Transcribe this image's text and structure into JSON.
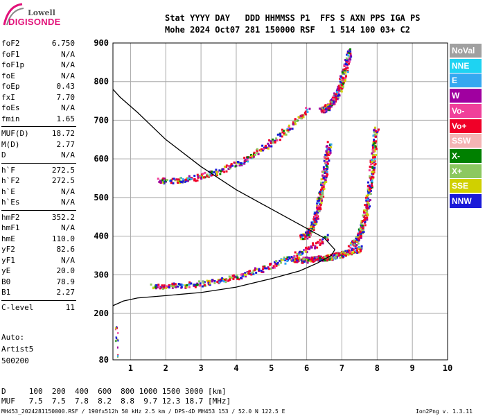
{
  "logo": {
    "top": "Lowell",
    "bottom": "DIGISONDE"
  },
  "header": {
    "line1": "Stat YYYY DAY   DDD HHMMSS P1  FFS S AXN PPS IGA PS",
    "line2": "Mohe 2024 Oct07 281 150000 RSF   1 514 100 03+ C2"
  },
  "params": [
    {
      "k": "foF2",
      "v": "6.750"
    },
    {
      "k": "foF1",
      "v": "N/A"
    },
    {
      "k": "foF1p",
      "v": "N/A"
    },
    {
      "k": "foE",
      "v": "N/A"
    },
    {
      "k": "foEp",
      "v": "0.43"
    },
    {
      "k": "fxI",
      "v": "7.70"
    },
    {
      "k": "foEs",
      "v": "N/A"
    },
    {
      "k": "fmin",
      "v": "1.65"
    },
    {
      "k": "MUF(D)",
      "v": "18.72"
    },
    {
      "k": "M(D)",
      "v": "2.77"
    },
    {
      "k": "D",
      "v": "N/A"
    },
    {
      "k": "h`F",
      "v": "272.5"
    },
    {
      "k": "h`F2",
      "v": "272.5"
    },
    {
      "k": "h`E",
      "v": "N/A"
    },
    {
      "k": "h`Es",
      "v": "N/A"
    },
    {
      "k": "hmF2",
      "v": "352.2"
    },
    {
      "k": "hmF1",
      "v": "N/A"
    },
    {
      "k": "hmE",
      "v": "110.0"
    },
    {
      "k": "yF2",
      "v": "82.6"
    },
    {
      "k": "yF1",
      "v": "N/A"
    },
    {
      "k": "yE",
      "v": "20.0"
    },
    {
      "k": "B0",
      "v": "78.9"
    },
    {
      "k": "B1",
      "v": "2.27"
    },
    {
      "k": "C-level",
      "v": "11"
    }
  ],
  "auto": {
    "line1": "Auto:",
    "line2": "Artist5",
    "line3": "500200"
  },
  "legend": [
    {
      "label": "NoVal",
      "color": "#a0a0a0"
    },
    {
      "label": "NNE",
      "color": "#1ed3f2"
    },
    {
      "label": "E",
      "color": "#35a8f0"
    },
    {
      "label": "W",
      "color": "#a000a0"
    },
    {
      "label": "Vo-",
      "color": "#f0409a"
    },
    {
      "label": "Vo+",
      "color": "#f00028"
    },
    {
      "label": "SSW",
      "color": "#f4b4b4"
    },
    {
      "label": "X-",
      "color": "#008000"
    },
    {
      "label": "X+",
      "color": "#8cc860"
    },
    {
      "label": "SSE",
      "color": "#d0d000"
    },
    {
      "label": "NNW",
      "color": "#1a1ad8"
    }
  ],
  "footer": {
    "d_row": "D     100  200  400  600  800 1000 1500 3000 [km]",
    "muf_row": "MUF   7.5  7.5  7.8  8.2  8.8  9.7 12.3 18.7 [MHz]",
    "file_row": "MH453_2024281150000.RSF / 190fx512h 50 kHz 2.5 km / DPS-4D MH453 153 / 52.0 N 122.5 E",
    "version": "Ion2Png v. 1.3.11"
  },
  "chart_data": {
    "type": "scatter",
    "xlim": [
      0.5,
      10
    ],
    "ylim": [
      80,
      900
    ],
    "x_ticks": [
      1,
      2,
      3,
      4,
      5,
      6,
      7,
      8,
      9,
      10
    ],
    "y_ticks": [
      80,
      200,
      300,
      400,
      500,
      600,
      700,
      800,
      900
    ],
    "grid": true,
    "profile": [
      [
        0.5,
        220
      ],
      [
        0.8,
        232
      ],
      [
        1.2,
        240
      ],
      [
        2,
        246
      ],
      [
        3,
        254
      ],
      [
        4,
        268
      ],
      [
        5,
        290
      ],
      [
        5.8,
        310
      ],
      [
        6.3,
        330
      ],
      [
        6.7,
        350
      ],
      [
        6.8,
        365
      ],
      [
        6.5,
        395
      ],
      [
        5.8,
        430
      ],
      [
        5,
        470
      ],
      [
        4,
        520
      ],
      [
        3,
        580
      ],
      [
        2,
        650
      ],
      [
        1.2,
        720
      ],
      [
        0.7,
        760
      ],
      [
        0.5,
        780
      ]
    ],
    "traces": [
      {
        "name": "o_F2_low",
        "x0": 1.6,
        "x1": 6.6,
        "y0": 272,
        "y1": 400
      },
      {
        "name": "x_F2_low",
        "x0": 5.6,
        "x1": 7.5,
        "y0": 340,
        "y1": 370
      },
      {
        "name": "o_F2_steep",
        "x0": 5.8,
        "x1": 6.6,
        "y0": 400,
        "y1": 640
      },
      {
        "name": "x_F2_steep",
        "x0": 7.2,
        "x1": 7.95,
        "y0": 380,
        "y1": 680
      },
      {
        "name": "o_2hop",
        "x0": 1.8,
        "x1": 6.0,
        "y0": 545,
        "y1": 730
      },
      {
        "name": "x_2hop",
        "x0": 6.4,
        "x1": 7.2,
        "y0": 730,
        "y1": 880
      }
    ]
  }
}
